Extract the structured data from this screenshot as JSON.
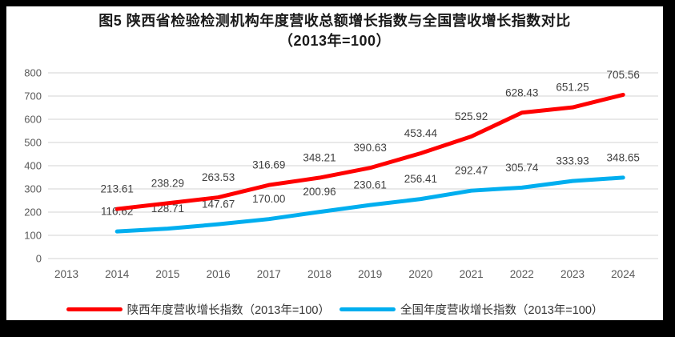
{
  "colors": {
    "red": "#FF0000",
    "blue": "#00AEEF",
    "grid": "#DCDCDC",
    "tick_text": "#595959",
    "data_label_text": "#404040",
    "title_text": "#1A1A1A",
    "legend_text": "#333333",
    "frame": "#000000",
    "chart_bg": "#FFFFFF"
  },
  "title": {
    "line1": "图5  陕西省检验检测机构年度营收总额增长指数与全国营收增长指数对比",
    "line2": "（2013年=100）"
  },
  "chart_data": {
    "type": "line",
    "title": "图5 陕西省检验检测机构年度营收总额增长指数与全国营收增长指数对比（2013年=100）",
    "x_categories": [
      "2013",
      "2014",
      "2015",
      "2016",
      "2017",
      "2018",
      "2019",
      "2020",
      "2021",
      "2022",
      "2023",
      "2024"
    ],
    "ylim": [
      0,
      800
    ],
    "ytick_step": 100,
    "grid": true,
    "legend_position": "bottom",
    "series": [
      {
        "name": "陕西年度营收增长指数（2013年=100）",
        "color": "#FF0000",
        "start_index": 1,
        "values": [
          213.61,
          238.29,
          263.53,
          316.69,
          348.21,
          390.63,
          453.44,
          525.92,
          628.43,
          651.25,
          705.56
        ],
        "value_labels": [
          "213.61",
          "238.29",
          "263.53",
          "316.69",
          "348.21",
          "390.63",
          "453.44",
          "525.92",
          "628.43",
          "651.25",
          "705.56"
        ]
      },
      {
        "name": "全国年度营收增长指数（2013年=100）",
        "color": "#00AEEF",
        "start_index": 1,
        "values": [
          116.62,
          128.71,
          147.67,
          170.0,
          200.96,
          230.61,
          256.41,
          292.47,
          305.74,
          333.93,
          348.65
        ],
        "value_labels": [
          "116.62",
          "128.71",
          "147.67",
          "170.00",
          "200.96",
          "230.61",
          "256.41",
          "292.47",
          "305.74",
          "333.93",
          "348.65"
        ]
      }
    ]
  },
  "legend": {
    "items": [
      {
        "label": "陕西年度营收增长指数（2013年=100）",
        "color": "#FF0000"
      },
      {
        "label": "全国年度营收增长指数（2013年=100）",
        "color": "#00AEEF"
      }
    ]
  }
}
